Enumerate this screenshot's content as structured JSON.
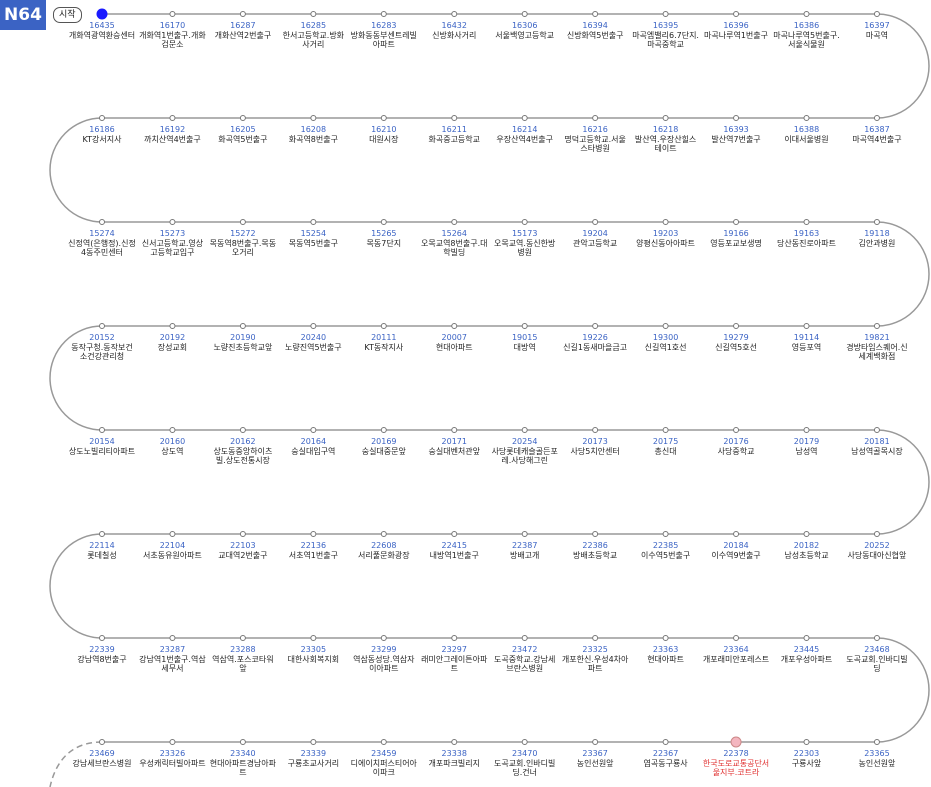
{
  "header": {
    "route": "N64",
    "start_label": "시작"
  },
  "rows": [
    {
      "stops": [
        {
          "id": "16435",
          "name": "개화역광역환승센터"
        },
        {
          "id": "16170",
          "name": "개화역1번출구.개화검문소"
        },
        {
          "id": "16287",
          "name": "개화산역2번출구"
        },
        {
          "id": "16285",
          "name": "한서고등학교.방화사거리"
        },
        {
          "id": "16283",
          "name": "방화동동부센트레빌아파트"
        },
        {
          "id": "16432",
          "name": "신방화사거리"
        },
        {
          "id": "16306",
          "name": "서울백영고등학교"
        },
        {
          "id": "16394",
          "name": "신방화역5번출구"
        },
        {
          "id": "16395",
          "name": "마곡엠밸리6.7단지.마곡중학교"
        },
        {
          "id": "16396",
          "name": "마곡나루역1번출구"
        },
        {
          "id": "16386",
          "name": "마곡나루역5번출구.서울식물원"
        },
        {
          "id": "16397",
          "name": "마곡역"
        }
      ]
    },
    {
      "stops": [
        {
          "id": "16186",
          "name": "KT강서지사"
        },
        {
          "id": "16192",
          "name": "까치산역4번출구"
        },
        {
          "id": "16205",
          "name": "화곡역5번출구"
        },
        {
          "id": "16208",
          "name": "화곡역8번출구"
        },
        {
          "id": "16210",
          "name": "대원시장"
        },
        {
          "id": "16211",
          "name": "화곡중고등학교"
        },
        {
          "id": "16214",
          "name": "우장산역4번출구"
        },
        {
          "id": "16216",
          "name": "명덕고등학교.서울스타병원"
        },
        {
          "id": "16218",
          "name": "발산역.우장산힐스테이트"
        },
        {
          "id": "16393",
          "name": "발산역7번출구"
        },
        {
          "id": "16388",
          "name": "이대서울병원"
        },
        {
          "id": "16387",
          "name": "마곡역4번출구"
        }
      ]
    },
    {
      "stops": [
        {
          "id": "15274",
          "name": "신정역(은행정).신정4동주민센터"
        },
        {
          "id": "15273",
          "name": "신서고등학교.영상고등학교입구"
        },
        {
          "id": "15272",
          "name": "목동역8번출구.목동오거리"
        },
        {
          "id": "15254",
          "name": "목동역5번출구"
        },
        {
          "id": "15265",
          "name": "목동7단지"
        },
        {
          "id": "15264",
          "name": "오목교역8번출구.대학빌딩"
        },
        {
          "id": "15173",
          "name": "오목교역.동신한방병원"
        },
        {
          "id": "19204",
          "name": "관악고등학교"
        },
        {
          "id": "19203",
          "name": "양평신동아아파트"
        },
        {
          "id": "19166",
          "name": "영등포교보생명"
        },
        {
          "id": "19163",
          "name": "당산동진로아파트"
        },
        {
          "id": "19118",
          "name": "김안과병원"
        }
      ]
    },
    {
      "stops": [
        {
          "id": "20152",
          "name": "동작구청.동작보건소건강관리청"
        },
        {
          "id": "20192",
          "name": "장성교회"
        },
        {
          "id": "20190",
          "name": "노량진초등학교앞"
        },
        {
          "id": "20240",
          "name": "노량진역5번출구"
        },
        {
          "id": "20111",
          "name": "KT동작지사"
        },
        {
          "id": "20007",
          "name": "현대아파트"
        },
        {
          "id": "19015",
          "name": "대방역"
        },
        {
          "id": "19226",
          "name": "신길1동새마을금고"
        },
        {
          "id": "19300",
          "name": "신길역1호선"
        },
        {
          "id": "19279",
          "name": "신길역5호선"
        },
        {
          "id": "19114",
          "name": "영등포역"
        },
        {
          "id": "19821",
          "name": "경방타임스퀘어.신세계백화점"
        }
      ]
    },
    {
      "stops": [
        {
          "id": "20154",
          "name": "상도노빌리티아파트"
        },
        {
          "id": "20160",
          "name": "상도역"
        },
        {
          "id": "20162",
          "name": "상도동중앙하이츠빌.상도전통시장"
        },
        {
          "id": "20164",
          "name": "숭실대입구역"
        },
        {
          "id": "20169",
          "name": "숭실대중문앞"
        },
        {
          "id": "20171",
          "name": "숭실대벤처관앞"
        },
        {
          "id": "20254",
          "name": "사당롯데캐슬골든포레.사당해그린"
        },
        {
          "id": "20173",
          "name": "사당5치안센터"
        },
        {
          "id": "20175",
          "name": "총신대"
        },
        {
          "id": "20176",
          "name": "사당중학교"
        },
        {
          "id": "20179",
          "name": "남성역"
        },
        {
          "id": "20181",
          "name": "남성역골목시장"
        }
      ]
    },
    {
      "stops": [
        {
          "id": "22114",
          "name": "롯데칠성"
        },
        {
          "id": "22104",
          "name": "서초동유원아파트"
        },
        {
          "id": "22103",
          "name": "교대역2번출구"
        },
        {
          "id": "22136",
          "name": "서초역1번출구"
        },
        {
          "id": "22608",
          "name": "서리풀문화광장"
        },
        {
          "id": "22415",
          "name": "내방역1번출구"
        },
        {
          "id": "22387",
          "name": "방배고개"
        },
        {
          "id": "22386",
          "name": "방배초등학교"
        },
        {
          "id": "22385",
          "name": "이수역5번출구"
        },
        {
          "id": "20184",
          "name": "이수역9번출구"
        },
        {
          "id": "20182",
          "name": "남성초등학교"
        },
        {
          "id": "20252",
          "name": "사당동대아신협앞"
        }
      ]
    },
    {
      "stops": [
        {
          "id": "22339",
          "name": "강남역8번출구"
        },
        {
          "id": "23287",
          "name": "강남역1번출구.역삼세무서"
        },
        {
          "id": "23288",
          "name": "역삼역.포스코타워앞"
        },
        {
          "id": "23305",
          "name": "대한사회복지회"
        },
        {
          "id": "23299",
          "name": "역삼동성당.역삼자이아파트"
        },
        {
          "id": "23297",
          "name": "래미안그레이튼아파트"
        },
        {
          "id": "23472",
          "name": "도곡중학교.강남세브란스병원"
        },
        {
          "id": "23325",
          "name": "개포한신.우성4차아파트"
        },
        {
          "id": "23363",
          "name": "현대아파트"
        },
        {
          "id": "23364",
          "name": "개포래미안포레스트"
        },
        {
          "id": "23445",
          "name": "개포우성아파트"
        },
        {
          "id": "23468",
          "name": "도곡교회.인바디빌딩"
        }
      ]
    },
    {
      "stops": [
        {
          "id": "23469",
          "name": "강남세브란스병원"
        },
        {
          "id": "23326",
          "name": "우성캐릭터빌아파트"
        },
        {
          "id": "23340",
          "name": "현대아파트경남아파트"
        },
        {
          "id": "23339",
          "name": "구룡초교사거리"
        },
        {
          "id": "23459",
          "name": "디에이치퍼스티어아이파크"
        },
        {
          "id": "23338",
          "name": "개포파크빌리지"
        },
        {
          "id": "23470",
          "name": "도곡교회.인바디빌딩.건너"
        },
        {
          "id": "23367",
          "name": "농인선원앞"
        },
        {
          "id": "22367",
          "name": "염곡동구룡사"
        },
        {
          "id": "22378",
          "name": "한국도로교통공단서울지부.코트라"
        },
        {
          "id": "22303",
          "name": "구룡사앞"
        },
        {
          "id": "23365",
          "name": "농인선원앞"
        }
      ]
    }
  ]
}
